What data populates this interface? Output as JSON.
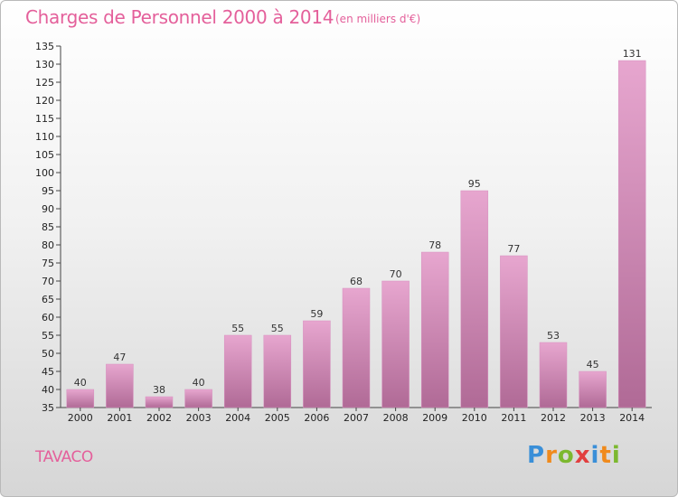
{
  "header": {
    "title": "Charges de Personnel 2000 à 2014",
    "subtitle": "(en milliers d'€)"
  },
  "footer": {
    "commune": "TAVACO",
    "logo_letters": [
      "P",
      "r",
      "o",
      "x",
      "i",
      "t",
      "i"
    ],
    "logo_colors": [
      "#3a8fd8",
      "#f08a1c",
      "#7cb82f",
      "#e23f3f",
      "#3a8fd8",
      "#f08a1c",
      "#7cb82f"
    ]
  },
  "colors": {
    "bar_top": "#e7a6cf",
    "bar_bottom": "#b06a96",
    "accent": "#e4609b"
  },
  "chart_data": {
    "type": "bar",
    "title": "Charges de Personnel 2000 à 2014",
    "categories": [
      "2000",
      "2001",
      "2002",
      "2003",
      "2004",
      "2005",
      "2006",
      "2007",
      "2008",
      "2009",
      "2010",
      "2011",
      "2012",
      "2013",
      "2014"
    ],
    "values": [
      40,
      47,
      38,
      40,
      55,
      55,
      59,
      68,
      70,
      78,
      95,
      77,
      53,
      45,
      131
    ],
    "ylim": [
      35,
      135
    ],
    "ytick_step": 5,
    "grid": false
  }
}
